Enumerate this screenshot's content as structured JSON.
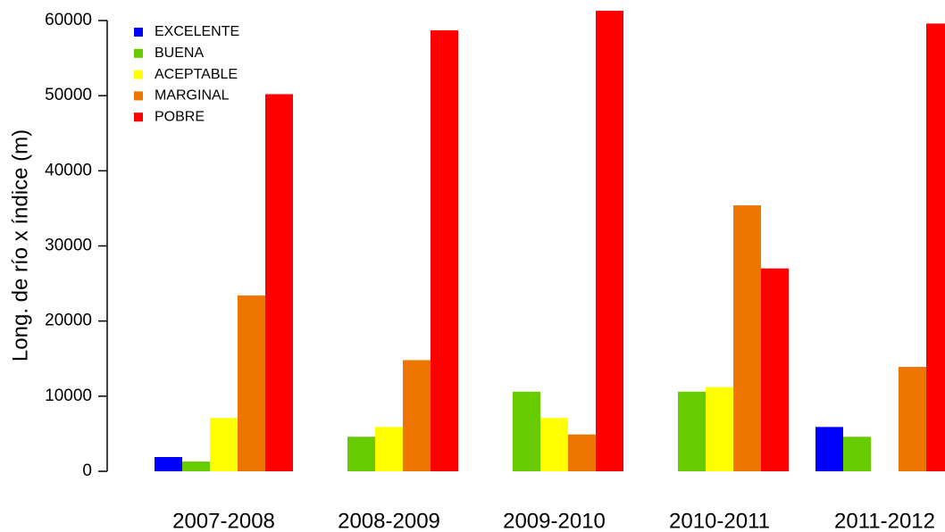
{
  "chart_data": {
    "type": "bar",
    "y_label": "Long. de río x índice (m)",
    "categories": [
      "2007-2008",
      "2008-2009",
      "2009-2010",
      "2010-2011",
      "2011-2012"
    ],
    "series": [
      {
        "name": "EXCELENTE",
        "color": "#0000ff",
        "values": [
          1900,
          0,
          0,
          0,
          5900
        ]
      },
      {
        "name": "BUENA",
        "color": "#66cc00",
        "values": [
          1300,
          4600,
          10600,
          10600,
          4600
        ]
      },
      {
        "name": "ACEPTABLE",
        "color": "#ffff00",
        "values": [
          7100,
          5900,
          7100,
          11200,
          0
        ]
      },
      {
        "name": "MARGINAL",
        "color": "#ee7600",
        "values": [
          23400,
          14800,
          4900,
          35400,
          13900
        ]
      },
      {
        "name": "POBRE",
        "color": "#ff0000",
        "values": [
          50200,
          58700,
          61300,
          27000,
          59600
        ]
      }
    ],
    "ylim": [
      0,
      60000
    ],
    "yticks": [
      0,
      10000,
      20000,
      30000,
      40000,
      50000,
      60000
    ],
    "legend": "top-left"
  }
}
